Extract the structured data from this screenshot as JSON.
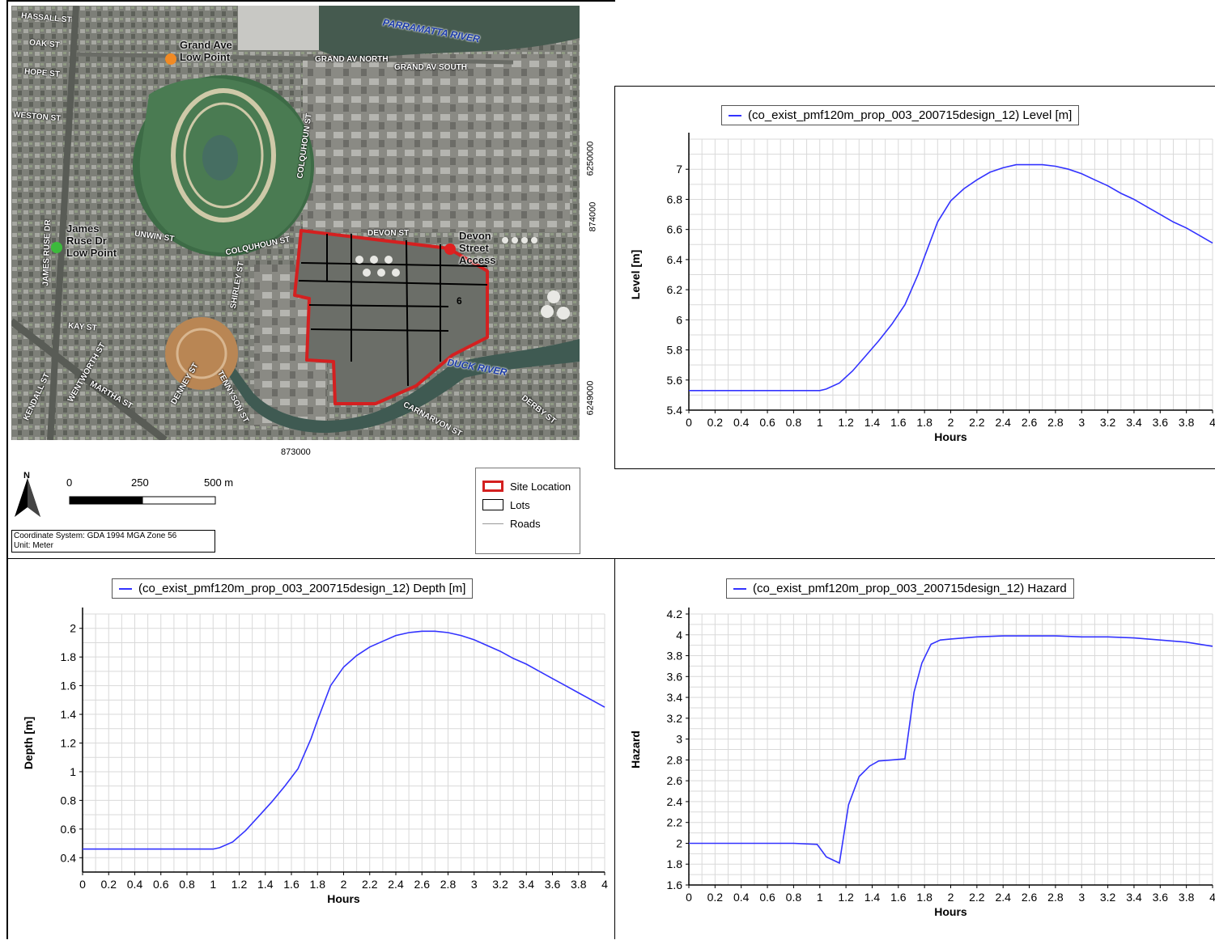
{
  "map": {
    "street_labels": [
      {
        "text": "HASSALL ST",
        "rot": 5
      },
      {
        "text": "OAK ST",
        "rot": 5
      },
      {
        "text": "HOPE ST",
        "rot": 5
      },
      {
        "text": "WESTON ST",
        "rot": 5
      },
      {
        "text": "GRAND AV NORTH",
        "rot": 0
      },
      {
        "text": "GRAND AV SOUTH",
        "rot": 0
      },
      {
        "text": "COLQUHOUN ST",
        "rot": -82
      },
      {
        "text": "UNWIN ST",
        "rot": 8
      },
      {
        "text": "COLQUHOUN ST",
        "rot": -12
      },
      {
        "text": "DEVON ST",
        "rot": 0
      },
      {
        "text": "SHIRLEY ST",
        "rot": -80
      },
      {
        "text": "JAMES RUSE DR",
        "rot": -88
      },
      {
        "text": "KAY ST",
        "rot": 5
      },
      {
        "text": "WENTWORTH ST",
        "rot": -60
      },
      {
        "text": "MARTHA ST",
        "rot": 30
      },
      {
        "text": "KENDALL ST",
        "rot": -65
      },
      {
        "text": "DENNEY ST",
        "rot": -60
      },
      {
        "text": "TENNYSON ST",
        "rot": 62
      },
      {
        "text": "CARNARVON ST",
        "rot": 28
      },
      {
        "text": "DERBY ST",
        "rot": 38
      }
    ],
    "rivers": [
      "PARRAMATTA RIVER",
      "DUCK RIVER"
    ],
    "points": [
      {
        "label": "Grand Ave Low Point",
        "color": "#f08a24"
      },
      {
        "label": "James Ruse Dr Low Point",
        "color": "#3cba3c"
      },
      {
        "label": "Devon Street Access",
        "color": "#e02020"
      }
    ],
    "lot_number": "6",
    "coords": {
      "y_top": "6250000",
      "y_mid": "874000",
      "y_bottom": "6249000",
      "x": "873000"
    },
    "scale": {
      "labels": [
        "0",
        "250",
        "500 m"
      ]
    },
    "north": "N",
    "coord_system": "Coordinate System: GDA 1994 MGA Zone 56",
    "unit": "Unit: Meter",
    "legend": [
      {
        "label": "Site Location",
        "color": "#d42020"
      },
      {
        "label": "Lots",
        "color": "#000000"
      },
      {
        "label": "Roads",
        "color": "#999999"
      }
    ]
  },
  "chart_data": [
    {
      "type": "line",
      "legend": "(co_exist_pmf120m_prop_003_200715design_12) Level [m]",
      "xlabel": "Hours",
      "ylabel": "Level [m]",
      "xlim": [
        0,
        4
      ],
      "ylim": [
        5.4,
        7.2
      ],
      "yticks": [
        "5.4",
        "5.6",
        "5.8",
        "6",
        "6.2",
        "6.4",
        "6.6",
        "6.8",
        "7"
      ],
      "xticks": [
        "0",
        "0.2",
        "0.4",
        "0.6",
        "0.8",
        "1",
        "1.2",
        "1.4",
        "1.6",
        "1.8",
        "2",
        "2.2",
        "2.4",
        "2.6",
        "2.8",
        "3",
        "3.2",
        "3.4",
        "3.6",
        "3.8",
        "4"
      ],
      "color": "#3333ff",
      "x": [
        0,
        0.2,
        0.4,
        0.6,
        0.8,
        1.0,
        1.05,
        1.15,
        1.25,
        1.35,
        1.45,
        1.55,
        1.65,
        1.75,
        1.8,
        1.9,
        2.0,
        2.1,
        2.2,
        2.3,
        2.4,
        2.5,
        2.6,
        2.7,
        2.8,
        2.9,
        3.0,
        3.1,
        3.2,
        3.3,
        3.4,
        3.5,
        3.6,
        3.7,
        3.8,
        3.9,
        4.0
      ],
      "y": [
        5.53,
        5.53,
        5.53,
        5.53,
        5.53,
        5.53,
        5.54,
        5.58,
        5.66,
        5.76,
        5.86,
        5.97,
        6.1,
        6.3,
        6.42,
        6.65,
        6.79,
        6.87,
        6.93,
        6.98,
        7.01,
        7.03,
        7.03,
        7.03,
        7.02,
        7.0,
        6.97,
        6.93,
        6.89,
        6.84,
        6.8,
        6.75,
        6.7,
        6.65,
        6.61,
        6.56,
        6.51
      ]
    },
    {
      "type": "line",
      "legend": "(co_exist_pmf120m_prop_003_200715design_12) Depth [m]",
      "xlabel": "Hours",
      "ylabel": "Depth [m]",
      "xlim": [
        0,
        4
      ],
      "ylim": [
        0.3,
        2.1
      ],
      "yticks": [
        "0.4",
        "0.6",
        "0.8",
        "1",
        "1.2",
        "1.4",
        "1.6",
        "1.8",
        "2"
      ],
      "xticks": [
        "0",
        "0.2",
        "0.4",
        "0.6",
        "0.8",
        "1",
        "1.2",
        "1.4",
        "1.6",
        "1.8",
        "2",
        "2.2",
        "2.4",
        "2.6",
        "2.8",
        "3",
        "3.2",
        "3.4",
        "3.6",
        "3.8",
        "4"
      ],
      "color": "#3333ff",
      "x": [
        0,
        0.2,
        0.4,
        0.6,
        0.8,
        1.0,
        1.05,
        1.15,
        1.25,
        1.35,
        1.45,
        1.55,
        1.65,
        1.75,
        1.8,
        1.9,
        2.0,
        2.1,
        2.2,
        2.3,
        2.4,
        2.5,
        2.6,
        2.7,
        2.8,
        2.9,
        3.0,
        3.1,
        3.2,
        3.3,
        3.4,
        3.5,
        3.6,
        3.7,
        3.8,
        3.9,
        4.0
      ],
      "y": [
        0.46,
        0.46,
        0.46,
        0.46,
        0.46,
        0.46,
        0.47,
        0.51,
        0.59,
        0.69,
        0.79,
        0.9,
        1.02,
        1.23,
        1.36,
        1.6,
        1.73,
        1.81,
        1.87,
        1.91,
        1.95,
        1.97,
        1.98,
        1.98,
        1.97,
        1.95,
        1.92,
        1.88,
        1.84,
        1.79,
        1.75,
        1.7,
        1.65,
        1.6,
        1.55,
        1.5,
        1.45
      ]
    },
    {
      "type": "line",
      "legend": "(co_exist_pmf120m_prop_003_200715design_12) Hazard",
      "xlabel": "Hours",
      "ylabel": "Hazard",
      "xlim": [
        0,
        4
      ],
      "ylim": [
        1.6,
        4.2
      ],
      "yticks": [
        "1.6",
        "1.8",
        "2",
        "2.2",
        "2.4",
        "2.6",
        "2.8",
        "3",
        "3.2",
        "3.4",
        "3.6",
        "3.8",
        "4",
        "4.2"
      ],
      "xticks": [
        "0",
        "0.2",
        "0.4",
        "0.6",
        "0.8",
        "1",
        "1.2",
        "1.4",
        "1.6",
        "1.8",
        "2",
        "2.2",
        "2.4",
        "2.6",
        "2.8",
        "3",
        "3.2",
        "3.4",
        "3.6",
        "3.8",
        "4"
      ],
      "color": "#3333ff",
      "x": [
        0,
        0.2,
        0.4,
        0.6,
        0.8,
        0.98,
        1.05,
        1.15,
        1.22,
        1.3,
        1.38,
        1.45,
        1.55,
        1.65,
        1.72,
        1.78,
        1.85,
        1.92,
        2.0,
        2.2,
        2.4,
        2.6,
        2.8,
        3.0,
        3.2,
        3.4,
        3.6,
        3.8,
        4.0
      ],
      "y": [
        2.0,
        2.0,
        2.0,
        2.0,
        2.0,
        1.99,
        1.87,
        1.81,
        2.37,
        2.64,
        2.74,
        2.79,
        2.8,
        2.81,
        3.45,
        3.73,
        3.91,
        3.95,
        3.96,
        3.98,
        3.99,
        3.99,
        3.99,
        3.98,
        3.98,
        3.97,
        3.95,
        3.93,
        3.89
      ]
    }
  ]
}
